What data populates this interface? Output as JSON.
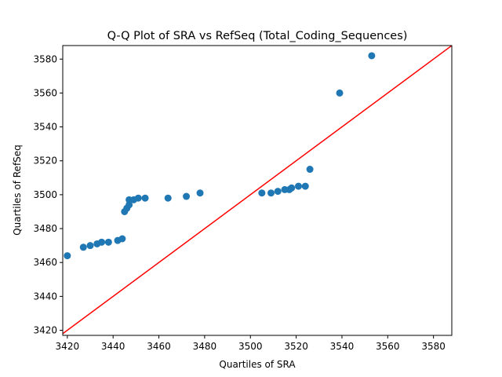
{
  "chart_data": {
    "type": "scatter",
    "title": "Q-Q Plot of SRA vs RefSeq (Total_Coding_Sequences)",
    "xlabel": "Quartiles of SRA",
    "ylabel": "Quartiles of RefSeq",
    "xlim": [
      3418,
      3588
    ],
    "ylim": [
      3417,
      3588
    ],
    "xticks": [
      3420,
      3440,
      3460,
      3480,
      3500,
      3520,
      3540,
      3560,
      3580
    ],
    "yticks": [
      3420,
      3440,
      3460,
      3480,
      3500,
      3520,
      3540,
      3560,
      3580
    ],
    "grid": false,
    "point_color": "#1f77b4",
    "line_color": "#ff0000",
    "reference_line": {
      "type": "y=x"
    },
    "points": [
      {
        "x": 3420,
        "y": 3464
      },
      {
        "x": 3427,
        "y": 3469
      },
      {
        "x": 3430,
        "y": 3470
      },
      {
        "x": 3433,
        "y": 3471
      },
      {
        "x": 3435,
        "y": 3472
      },
      {
        "x": 3438,
        "y": 3472
      },
      {
        "x": 3442,
        "y": 3473
      },
      {
        "x": 3444,
        "y": 3474
      },
      {
        "x": 3445,
        "y": 3490
      },
      {
        "x": 3446,
        "y": 3492
      },
      {
        "x": 3447,
        "y": 3494
      },
      {
        "x": 3447,
        "y": 3497
      },
      {
        "x": 3449,
        "y": 3497
      },
      {
        "x": 3451,
        "y": 3498
      },
      {
        "x": 3454,
        "y": 3498
      },
      {
        "x": 3464,
        "y": 3498
      },
      {
        "x": 3472,
        "y": 3499
      },
      {
        "x": 3478,
        "y": 3501
      },
      {
        "x": 3505,
        "y": 3501
      },
      {
        "x": 3509,
        "y": 3501
      },
      {
        "x": 3512,
        "y": 3502
      },
      {
        "x": 3515,
        "y": 3503
      },
      {
        "x": 3517,
        "y": 3503
      },
      {
        "x": 3518,
        "y": 3504
      },
      {
        "x": 3521,
        "y": 3505
      },
      {
        "x": 3524,
        "y": 3505
      },
      {
        "x": 3526,
        "y": 3515
      },
      {
        "x": 3539,
        "y": 3560
      },
      {
        "x": 3553,
        "y": 3582
      }
    ]
  }
}
